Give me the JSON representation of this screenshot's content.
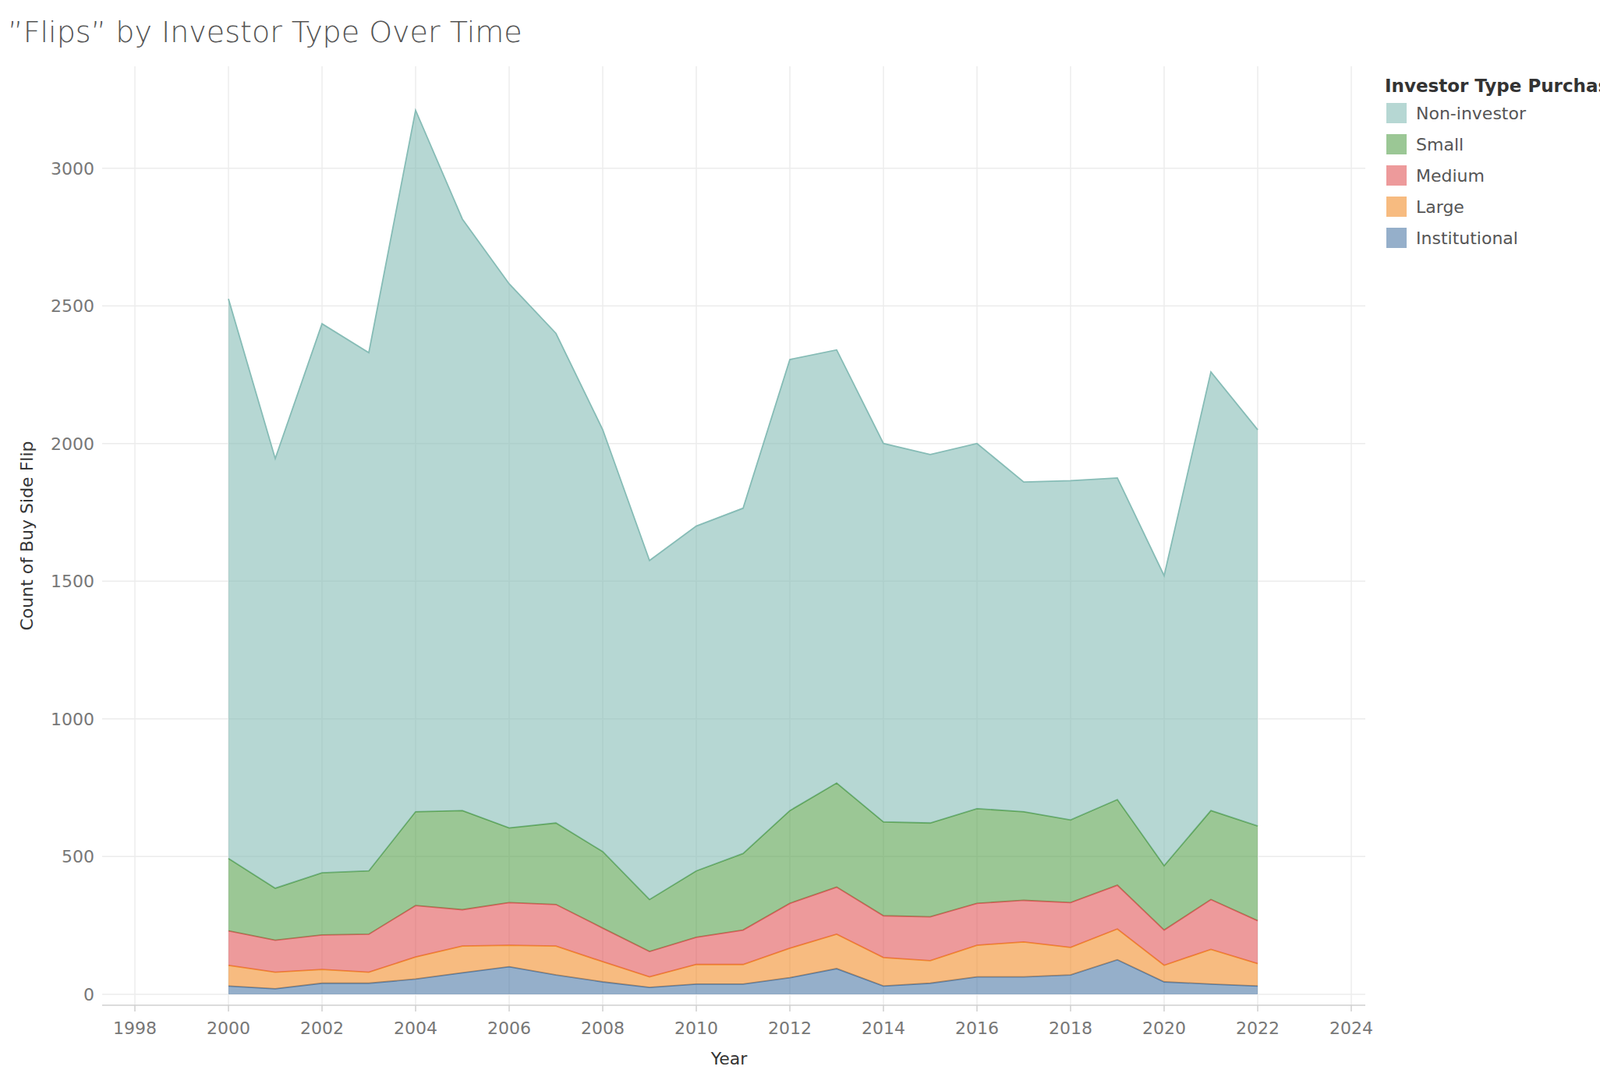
{
  "chart_data": {
    "type": "area",
    "stacked": true,
    "title": "”Flips” by Investor Type Over Time",
    "x_label": "Year",
    "y_label": "Count of Buy Side Flip",
    "legend_title": "Investor Type Purchase",
    "legend": "right",
    "grid": true,
    "x": [
      2000,
      2001,
      2002,
      2003,
      2004,
      2005,
      2006,
      2007,
      2008,
      2009,
      2010,
      2011,
      2012,
      2013,
      2014,
      2015,
      2016,
      2017,
      2018,
      2019,
      2020,
      2021,
      2022
    ],
    "xlim": [
      1997.3,
      2024.3
    ],
    "xticks": [
      1998,
      2000,
      2002,
      2004,
      2006,
      2008,
      2010,
      2012,
      2014,
      2016,
      2018,
      2020,
      2022,
      2024
    ],
    "ylim": [
      -40,
      3370
    ],
    "yticks": [
      0,
      500,
      1000,
      1500,
      2000,
      2500,
      3000
    ],
    "series": [
      {
        "name": "Non-investor",
        "color": "#86bcb6",
        "values": [
          2032,
          1560,
          1994,
          1882,
          2547,
          2148,
          1976,
          1778,
          1532,
          1231,
          1252,
          1254,
          1638,
          1573,
          1374,
          1338,
          1326,
          1197,
          1232,
          1168,
          1053,
          1593,
          1439
        ]
      },
      {
        "name": "Small",
        "color": "#59a14f",
        "values": [
          263,
          189,
          226,
          230,
          341,
          360,
          271,
          296,
          278,
          189,
          241,
          278,
          337,
          378,
          341,
          341,
          344,
          322,
          300,
          311,
          234,
          323,
          344
        ]
      },
      {
        "name": "Medium",
        "color": "#e15759",
        "values": [
          125,
          116,
          125,
          138,
          187,
          132,
          155,
          151,
          122,
          92,
          99,
          125,
          163,
          171,
          152,
          159,
          152,
          151,
          163,
          159,
          128,
          181,
          156
        ]
      },
      {
        "name": "Large",
        "color": "#f28e2b",
        "values": [
          75,
          60,
          50,
          40,
          80,
          97,
          78,
          105,
          73,
          38,
          71,
          71,
          107,
          125,
          103,
          82,
          115,
          127,
          100,
          112,
          60,
          126,
          81
        ]
      },
      {
        "name": "Institutional",
        "color": "#4e79a7",
        "values": [
          30,
          20,
          40,
          40,
          55,
          78,
          100,
          70,
          45,
          25,
          37,
          37,
          60,
          93,
          30,
          40,
          63,
          63,
          70,
          125,
          45,
          37,
          30
        ]
      }
    ]
  }
}
